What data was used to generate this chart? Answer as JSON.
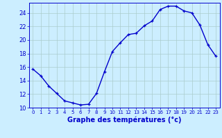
{
  "hours": [
    0,
    1,
    2,
    3,
    4,
    5,
    6,
    7,
    8,
    9,
    10,
    11,
    12,
    13,
    14,
    15,
    16,
    17,
    18,
    19,
    20,
    21,
    22,
    23
  ],
  "temperatures": [
    15.7,
    14.7,
    13.2,
    12.1,
    11.0,
    10.7,
    10.4,
    10.5,
    12.1,
    15.3,
    18.3,
    19.6,
    20.8,
    21.0,
    22.1,
    22.8,
    24.5,
    25.0,
    25.0,
    24.3,
    24.0,
    22.2,
    19.3,
    17.6
  ],
  "line_color": "#0000cc",
  "marker": "+",
  "marker_size": 3,
  "marker_lw": 0.9,
  "line_width": 1.0,
  "xlabel": "Graphe des températures (°c)",
  "bg_color": "#cceeff",
  "grid_color": "#aacccc",
  "tick_color": "#0000cc",
  "label_color": "#0000cc",
  "ylim": [
    10,
    25.5
  ],
  "yticks": [
    10,
    12,
    14,
    16,
    18,
    20,
    22,
    24
  ],
  "xlim": [
    -0.5,
    23.5
  ],
  "figsize": [
    3.2,
    2.0
  ],
  "dpi": 100
}
